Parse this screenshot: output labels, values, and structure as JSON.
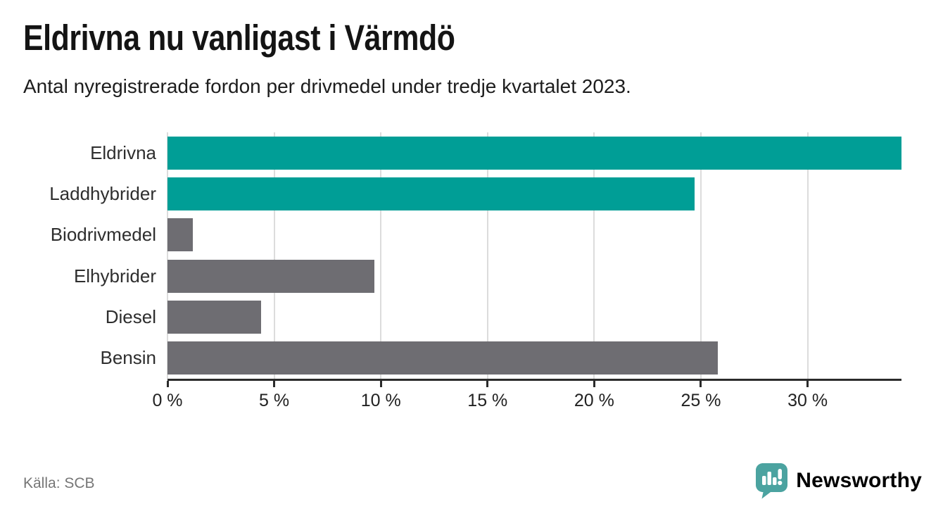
{
  "header": {
    "title": "Eldrivna nu vanligast i Värmdö",
    "subtitle": "Antal nyregistrerade fordon per drivmedel under tredje kvartalet 2023."
  },
  "chart_data": {
    "type": "bar",
    "orientation": "horizontal",
    "title": "Eldrivna nu vanligast i Värmdö",
    "subtitle": "Antal nyregistrerade fordon per drivmedel under tredje kvartalet 2023.",
    "categories": [
      "Eldrivna",
      "Laddhybrider",
      "Biodrivmedel",
      "Elhybrider",
      "Diesel",
      "Bensin"
    ],
    "values": [
      34.4,
      24.7,
      1.2,
      9.7,
      4.4,
      25.8
    ],
    "unit": "%",
    "bar_colors": [
      "#009e96",
      "#009e96",
      "#6e6d72",
      "#6e6d72",
      "#6e6d72",
      "#6e6d72"
    ],
    "x_ticks": [
      0,
      5,
      10,
      15,
      20,
      25,
      30
    ],
    "x_tick_labels": [
      "0 %",
      "5 %",
      "10 %",
      "15 %",
      "20 %",
      "25 %",
      "30 %"
    ],
    "xlim": [
      0,
      34.4
    ],
    "grid": "vertical",
    "legend": "none"
  },
  "footer": {
    "source": "Källa: SCB",
    "brand": "Newsworthy"
  },
  "colors": {
    "teal_bar": "#009e96",
    "gray_bar": "#6e6d72",
    "brand_teal": "#4ba3a0",
    "gridline": "#dcdcdc",
    "axis": "#2b2b2b"
  }
}
